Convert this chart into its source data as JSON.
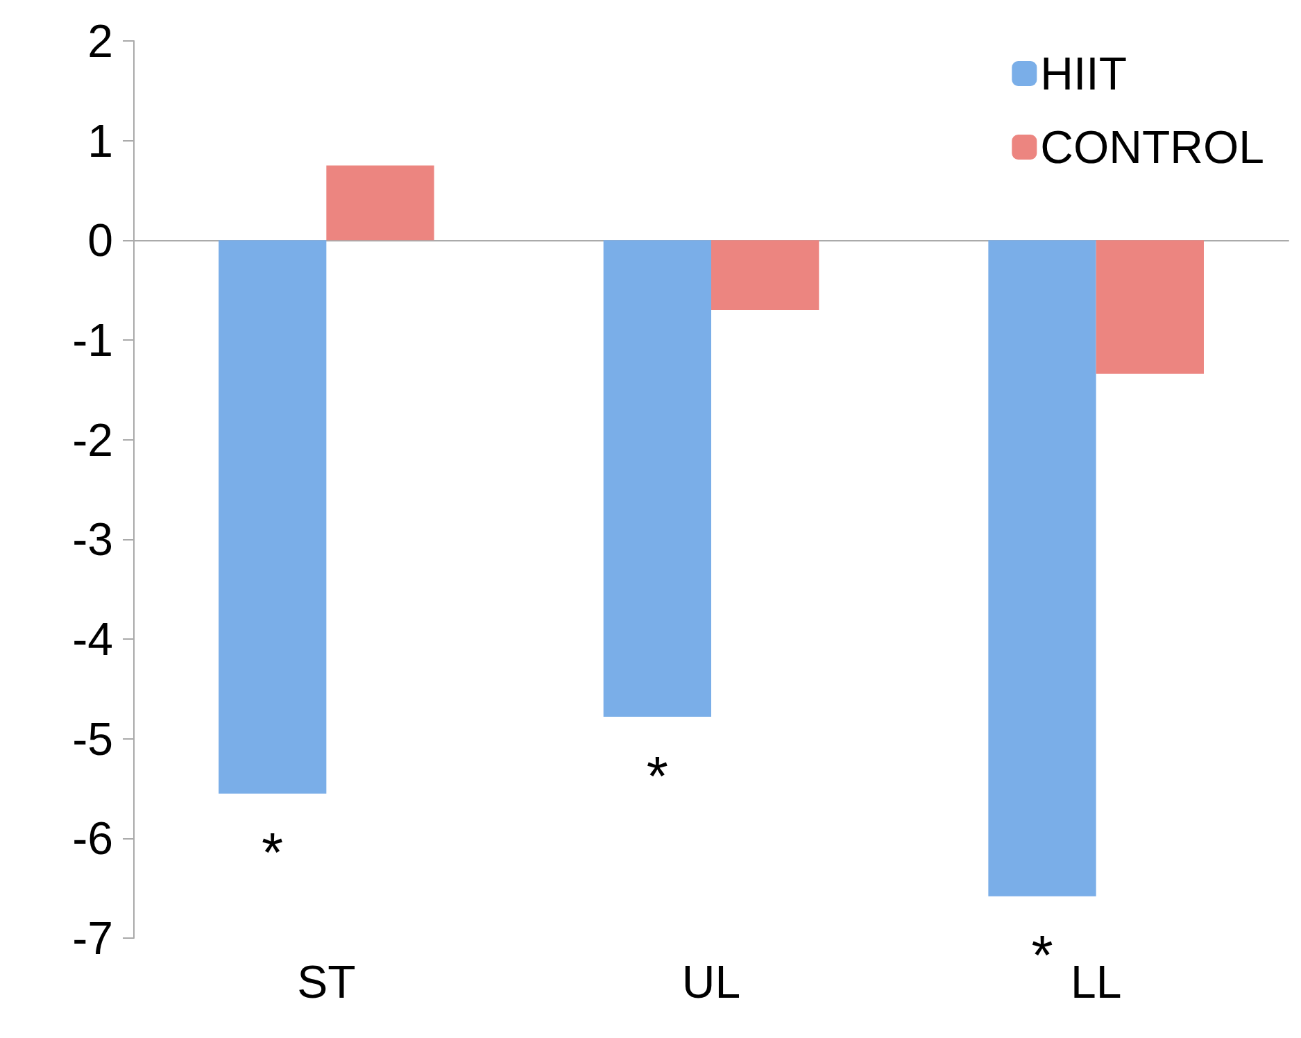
{
  "chart_data": {
    "type": "bar",
    "categories": [
      "ST",
      "UL",
      "LL"
    ],
    "series": [
      {
        "name": "HIIT",
        "color": "#7aaee8",
        "values": [
          -5.55,
          -4.78,
          -6.58
        ]
      },
      {
        "name": "CONTROL",
        "color": "#ec8580",
        "values": [
          0.75,
          -0.7,
          -1.34
        ]
      }
    ],
    "ylim": [
      -7,
      2
    ],
    "yticks": [
      -7,
      -6,
      -5,
      -4,
      -3,
      -2,
      -1,
      0,
      1,
      2
    ],
    "legend": "top right",
    "annotations": [
      "*",
      "*",
      "*"
    ]
  }
}
